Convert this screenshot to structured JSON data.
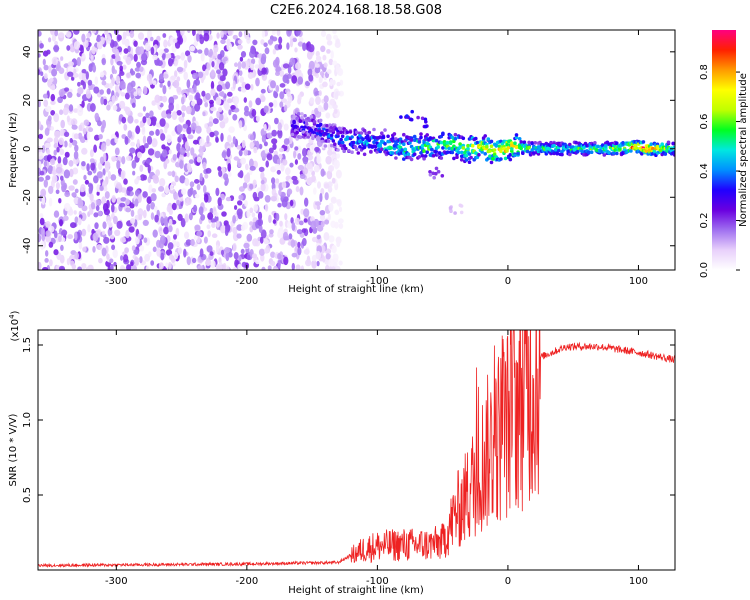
{
  "title": "C2E6.2024.168.18.58.G08",
  "chart_data": [
    {
      "type": "heatmap",
      "name": "spectrogram",
      "xlabel": "Height of straight line (km)",
      "ylabel": "Frequency (Hz)",
      "xlim": [
        -360,
        128
      ],
      "ylim": [
        -50,
        49
      ],
      "x_ticks": [
        -300,
        -200,
        -100,
        0,
        100
      ],
      "y_ticks": [
        -40,
        -20,
        0,
        20,
        40
      ],
      "colorbar": {
        "label": "Normalized spectral amplitude",
        "range": [
          0,
          0.97
        ],
        "ticks": [
          0.0,
          0.2,
          0.4,
          0.6,
          0.8
        ],
        "tick_labels": [
          "0.0",
          "0.2",
          "0.4",
          "0.6",
          "0.8"
        ],
        "colors": [
          "#ffffff",
          "#e8d0fb",
          "#a070f0",
          "#6a00e0",
          "#2000ff",
          "#0090ff",
          "#00e8e0",
          "#00ff20",
          "#c0ff00",
          "#ffff00",
          "#ff9a00",
          "#ff2000",
          "#ff0080"
        ]
      },
      "noise_region": {
        "x_range": [
          -360,
          -140
        ],
        "y_range": [
          -50,
          49
        ],
        "typical_amplitude": 0.15
      },
      "signal_trace": [
        {
          "x": -165,
          "y": 10,
          "a": 0.3
        },
        {
          "x": -145,
          "y": 8,
          "a": 0.35
        },
        {
          "x": -130,
          "y": 4,
          "a": 0.4
        },
        {
          "x": -110,
          "y": 3,
          "a": 0.45
        },
        {
          "x": -95,
          "y": 2,
          "a": 0.5
        },
        {
          "x": -80,
          "y": 0,
          "a": 0.55
        },
        {
          "x": -60,
          "y": 1,
          "a": 0.6
        },
        {
          "x": -45,
          "y": 2,
          "a": 0.62
        },
        {
          "x": -30,
          "y": 0,
          "a": 0.65
        },
        {
          "x": -20,
          "y": 1,
          "a": 0.7
        },
        {
          "x": -10,
          "y": -1,
          "a": 0.75
        },
        {
          "x": 0,
          "y": 1,
          "a": 0.8
        },
        {
          "x": 20,
          "y": 0,
          "a": 0.55
        },
        {
          "x": 50,
          "y": 0,
          "a": 0.55
        },
        {
          "x": 80,
          "y": 0,
          "a": 0.6
        },
        {
          "x": 100,
          "y": 1,
          "a": 0.85
        },
        {
          "x": 105,
          "y": 0,
          "a": 0.95
        },
        {
          "x": 128,
          "y": 0,
          "a": 0.55
        }
      ],
      "side_features": [
        {
          "x": -78,
          "y": 14,
          "a": 0.35
        },
        {
          "x": -65,
          "y": 11,
          "a": 0.3
        },
        {
          "x": -55,
          "y": -10,
          "a": 0.2
        },
        {
          "x": -40,
          "y": -25,
          "a": 0.1
        }
      ]
    },
    {
      "type": "line",
      "name": "snr",
      "xlabel": "Height of straight line (km)",
      "ylabel": "SNR (10 * V/V)",
      "y_multiplier_label": "(x10",
      "y_multiplier_exp": "4",
      "y_multiplier_close": ")",
      "xlim": [
        -360,
        128
      ],
      "ylim": [
        0,
        1.6
      ],
      "x_ticks": [
        -300,
        -200,
        -100,
        0,
        100
      ],
      "y_ticks": [
        0.5,
        1.0,
        1.5
      ],
      "y_tick_labels": [
        "0.5",
        "1.0",
        "1.5"
      ],
      "color": "#ee2222",
      "noise_amplitude": 0.02,
      "envelope": [
        {
          "x": -360,
          "y": 0.03
        },
        {
          "x": -200,
          "y": 0.04
        },
        {
          "x": -130,
          "y": 0.05
        },
        {
          "x": -110,
          "y": 0.15
        },
        {
          "x": -100,
          "y": 0.17
        },
        {
          "x": -80,
          "y": 0.18
        },
        {
          "x": -60,
          "y": 0.18
        },
        {
          "x": -50,
          "y": 0.2
        },
        {
          "x": -40,
          "y": 0.4
        },
        {
          "x": -30,
          "y": 0.55
        },
        {
          "x": -15,
          "y": 0.85
        },
        {
          "x": 0,
          "y": 1.05
        },
        {
          "x": 10,
          "y": 1.25
        },
        {
          "x": 25,
          "y": 1.42
        },
        {
          "x": 45,
          "y": 1.49
        },
        {
          "x": 70,
          "y": 1.49
        },
        {
          "x": 100,
          "y": 1.45
        },
        {
          "x": 128,
          "y": 1.4
        }
      ]
    }
  ]
}
